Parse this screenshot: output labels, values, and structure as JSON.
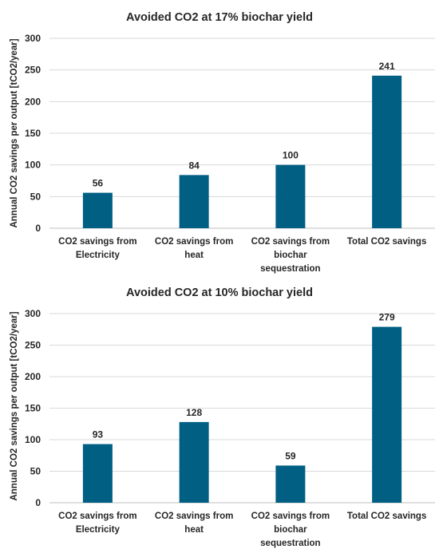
{
  "chart_data": [
    {
      "type": "bar",
      "title": "Avoided CO2 at 17% biochar yield",
      "ylabel": "Annual CO2 savings per output [tCO2/year]",
      "xlabel": "",
      "categories": [
        [
          "CO2 savings from",
          "Electricity"
        ],
        [
          "CO2  savings from",
          "heat"
        ],
        [
          "CO2 savings from",
          "biochar",
          "sequestration"
        ],
        [
          "Total CO2 savings"
        ]
      ],
      "values": [
        56,
        84,
        100,
        241
      ],
      "ylim": [
        0,
        300
      ],
      "yticks": [
        0,
        50,
        100,
        150,
        200,
        250,
        300
      ],
      "grid": true,
      "bar_color": "#005f83"
    },
    {
      "type": "bar",
      "title": "Avoided CO2 at 10% biochar yield",
      "ylabel": "Annual CO2 savings per output [tCO2/year]",
      "xlabel": "",
      "categories": [
        [
          "CO2 savings from",
          "Electricity"
        ],
        [
          "CO2  savings from",
          "heat"
        ],
        [
          "CO2 savings from",
          "biochar",
          "sequestration"
        ],
        [
          "Total CO2 savings"
        ]
      ],
      "values": [
        93,
        128,
        59,
        279
      ],
      "ylim": [
        0,
        300
      ],
      "yticks": [
        0,
        50,
        100,
        150,
        200,
        250,
        300
      ],
      "grid": true,
      "bar_color": "#005f83"
    }
  ]
}
